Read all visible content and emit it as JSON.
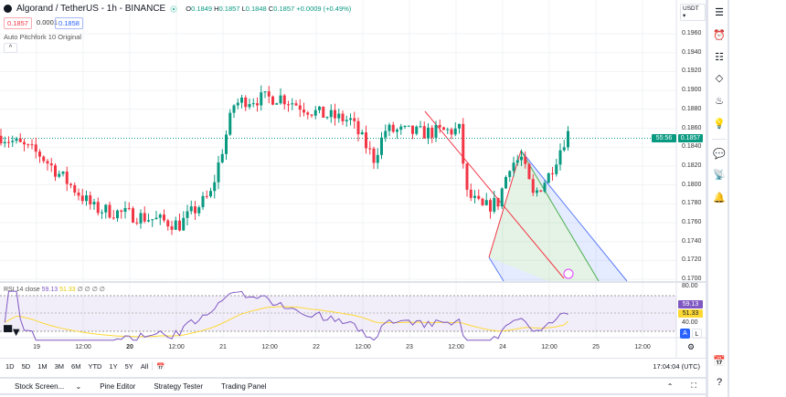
{
  "header": {
    "symbol": "Algorand / TetherUS - 1h - BINANCE",
    "o_label": "O",
    "o": "0.1849",
    "h_label": "H",
    "h": "0.1857",
    "l_label": "L",
    "l": "0.1848",
    "c_label": "C",
    "c": "0.1857",
    "change": "+0.0009 (+0.49%)"
  },
  "trade": {
    "sell": "0.1857",
    "spread": "0.0001",
    "buy": "0.1858"
  },
  "indicator": {
    "name": "Auto Pitchfork 10 Original"
  },
  "currency": "USDT",
  "price_axis": [
    "0.1960",
    "0.1940",
    "0.1920",
    "0.1900",
    "0.1880",
    "0.1860",
    "0.1840",
    "0.1820",
    "0.1800",
    "0.1780",
    "0.1760",
    "0.1740",
    "0.1720",
    "0.1700"
  ],
  "last_price": {
    "value": "0.1857",
    "countdown": "55:56"
  },
  "rsi": {
    "label": "RSI 14 close",
    "value": "59.13",
    "ma": "51.33",
    "extra": "∅ ∅ ∅ ∅",
    "upper": "80.00",
    "lower": "40.00",
    "auto": "A",
    "log": "L"
  },
  "time_axis": [
    "19",
    "12:00",
    "20",
    "12:00",
    "21",
    "12:00",
    "22",
    "12:00",
    "23",
    "12:00",
    "24",
    "12:00",
    "25",
    "12:00"
  ],
  "timeframes": [
    "1D",
    "5D",
    "1M",
    "3M",
    "6M",
    "YTD",
    "1Y",
    "5Y",
    "All"
  ],
  "clock": "17:04:04 (UTC)",
  "bottom_tabs": [
    "Stock Screen...",
    "Pine Editor",
    "Strategy Tester",
    "Trading Panel"
  ],
  "colors": {
    "up": "#089981",
    "down": "#f23645",
    "rsi": "#7e57c2",
    "rsi_ma": "#fdd835"
  },
  "chart_data": {
    "type": "candlestick",
    "path_hours": [
      0,
      10,
      24,
      34,
      46,
      54,
      60,
      63,
      72,
      82,
      90,
      96,
      99,
      108,
      118,
      120,
      124,
      128,
      131,
      134,
      137,
      141,
      146
    ],
    "path_prices": [
      0.1852,
      0.1832,
      0.1775,
      0.1768,
      0.1758,
      0.179,
      0.1885,
      0.189,
      0.1893,
      0.1875,
      0.1868,
      0.1828,
      0.1858,
      0.1855,
      0.1858,
      0.179,
      0.1775,
      0.1782,
      0.1822,
      0.1828,
      0.1788,
      0.181,
      0.1857
    ]
  }
}
